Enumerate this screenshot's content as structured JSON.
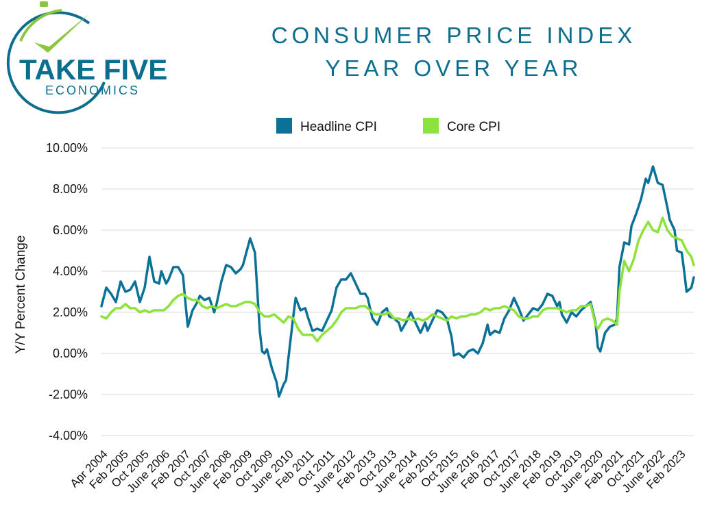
{
  "logo": {
    "brand_top": "TAKE FIVE",
    "brand_bottom": "ECONOMICS",
    "colors": {
      "teal": "#0b6e8e",
      "green": "#8cc63f"
    }
  },
  "title": {
    "line1": "CONSUMER PRICE INDEX",
    "line2": "YEAR OVER YEAR"
  },
  "chart_data": {
    "type": "line",
    "ylabel": "Y/Y Percent Change",
    "ylim": [
      -4,
      10
    ],
    "yticks": [
      -4,
      -2,
      0,
      2,
      4,
      6,
      8,
      10
    ],
    "ytick_labels": [
      "-4.00%",
      "-2.00%",
      "0.00%",
      "2.00%",
      "4.00%",
      "6.00%",
      "8.00%",
      "10.00%"
    ],
    "grid": true,
    "legend_position": "top-center",
    "x_start": "Apr 2004",
    "x_end": "Jun 2023",
    "x_count": 231,
    "xtick_labels": [
      "Apr 2004",
      "Feb 2005",
      "Oct 2005",
      "June 2006",
      "Feb 2007",
      "Oct 2007",
      "June 2008",
      "Feb 2009",
      "Oct 2009",
      "June 2010",
      "Feb 2011",
      "Oct 2011",
      "June 2012",
      "Feb 2013",
      "Oct 2013",
      "June 2014",
      "Feb 2015",
      "Oct 2015",
      "June 2016",
      "Feb 2017",
      "Oct 2017",
      "June 2018",
      "Feb 2019",
      "Oct 2019",
      "June 2020",
      "Feb 2021",
      "Oct 2021",
      "June 2022",
      "Feb 2023"
    ],
    "series": [
      {
        "name": "Headline CPI",
        "color": "#0b7196",
        "anchors": [
          [
            0,
            2.3
          ],
          [
            2,
            3.2
          ],
          [
            4,
            2.9
          ],
          [
            6,
            2.5
          ],
          [
            8,
            3.5
          ],
          [
            10,
            3.0
          ],
          [
            12,
            3.1
          ],
          [
            14,
            3.5
          ],
          [
            16,
            2.5
          ],
          [
            18,
            3.2
          ],
          [
            20,
            4.7
          ],
          [
            22,
            3.5
          ],
          [
            24,
            3.4
          ],
          [
            25,
            4.0
          ],
          [
            27,
            3.4
          ],
          [
            28,
            3.6
          ],
          [
            30,
            4.2
          ],
          [
            32,
            4.2
          ],
          [
            34,
            3.8
          ],
          [
            35,
            2.5
          ],
          [
            36,
            1.3
          ],
          [
            38,
            2.1
          ],
          [
            40,
            2.5
          ],
          [
            41,
            2.8
          ],
          [
            43,
            2.6
          ],
          [
            45,
            2.7
          ],
          [
            47,
            2.0
          ],
          [
            48,
            2.4
          ],
          [
            50,
            3.5
          ],
          [
            52,
            4.3
          ],
          [
            54,
            4.2
          ],
          [
            56,
            3.9
          ],
          [
            58,
            4.1
          ],
          [
            59,
            4.3
          ],
          [
            62,
            5.6
          ],
          [
            64,
            4.9
          ],
          [
            66,
            1.1
          ],
          [
            67,
            0.1
          ],
          [
            68,
            0.0
          ],
          [
            69,
            0.2
          ],
          [
            71,
            -0.7
          ],
          [
            73,
            -1.4
          ],
          [
            74,
            -2.1
          ],
          [
            76,
            -1.5
          ],
          [
            77,
            -1.3
          ],
          [
            78,
            -0.2
          ],
          [
            80,
            1.8
          ],
          [
            81,
            2.7
          ],
          [
            83,
            2.1
          ],
          [
            85,
            2.2
          ],
          [
            86,
            1.8
          ],
          [
            88,
            1.1
          ],
          [
            90,
            1.2
          ],
          [
            92,
            1.1
          ],
          [
            94,
            1.6
          ],
          [
            96,
            2.1
          ],
          [
            98,
            3.2
          ],
          [
            100,
            3.6
          ],
          [
            102,
            3.6
          ],
          [
            104,
            3.9
          ],
          [
            106,
            3.4
          ],
          [
            108,
            2.9
          ],
          [
            110,
            2.9
          ],
          [
            111,
            2.7
          ],
          [
            113,
            1.7
          ],
          [
            115,
            1.4
          ],
          [
            117,
            2.0
          ],
          [
            119,
            2.2
          ],
          [
            120,
            1.8
          ],
          [
            122,
            1.7
          ],
          [
            124,
            1.5
          ],
          [
            125,
            1.1
          ],
          [
            127,
            1.5
          ],
          [
            129,
            2.0
          ],
          [
            131,
            1.5
          ],
          [
            133,
            1.0
          ],
          [
            135,
            1.5
          ],
          [
            136,
            1.1
          ],
          [
            138,
            1.6
          ],
          [
            140,
            2.1
          ],
          [
            142,
            2.0
          ],
          [
            144,
            1.7
          ],
          [
            146,
            0.8
          ],
          [
            147,
            -0.1
          ],
          [
            149,
            0.0
          ],
          [
            151,
            -0.2
          ],
          [
            153,
            0.1
          ],
          [
            155,
            0.2
          ],
          [
            157,
            0.0
          ],
          [
            159,
            0.5
          ],
          [
            161,
            1.4
          ],
          [
            162,
            0.9
          ],
          [
            164,
            1.1
          ],
          [
            166,
            1.0
          ],
          [
            168,
            1.7
          ],
          [
            170,
            2.1
          ],
          [
            172,
            2.7
          ],
          [
            174,
            2.2
          ],
          [
            176,
            1.6
          ],
          [
            178,
            1.9
          ],
          [
            180,
            2.2
          ],
          [
            182,
            2.1
          ],
          [
            184,
            2.4
          ],
          [
            186,
            2.9
          ],
          [
            188,
            2.8
          ],
          [
            190,
            2.3
          ],
          [
            191,
            2.5
          ],
          [
            192,
            1.9
          ],
          [
            194,
            1.5
          ],
          [
            196,
            2.0
          ],
          [
            198,
            1.8
          ],
          [
            200,
            2.1
          ],
          [
            202,
            2.3
          ],
          [
            204,
            2.5
          ],
          [
            206,
            1.5
          ],
          [
            207,
            0.3
          ],
          [
            208,
            0.1
          ],
          [
            210,
            1.0
          ],
          [
            212,
            1.3
          ],
          [
            214,
            1.4
          ],
          [
            215,
            1.7
          ],
          [
            216,
            4.2
          ],
          [
            218,
            5.4
          ],
          [
            220,
            5.3
          ],
          [
            221,
            6.2
          ],
          [
            223,
            6.8
          ],
          [
            225,
            7.5
          ],
          [
            227,
            8.5
          ],
          [
            228,
            8.3
          ],
          [
            230,
            9.1
          ],
          [
            232,
            8.3
          ],
          [
            234,
            8.2
          ],
          [
            236,
            7.1
          ],
          [
            237,
            6.5
          ],
          [
            239,
            6.0
          ],
          [
            240,
            5.0
          ],
          [
            242,
            4.9
          ],
          [
            243,
            4.0
          ],
          [
            244,
            3.0
          ],
          [
            246,
            3.2
          ],
          [
            247,
            3.7
          ]
        ]
      },
      {
        "name": "Core CPI",
        "color": "#8ee23c",
        "anchors": [
          [
            0,
            1.8
          ],
          [
            2,
            1.7
          ],
          [
            4,
            2.0
          ],
          [
            6,
            2.2
          ],
          [
            8,
            2.2
          ],
          [
            10,
            2.4
          ],
          [
            12,
            2.2
          ],
          [
            14,
            2.2
          ],
          [
            16,
            2.0
          ],
          [
            18,
            2.1
          ],
          [
            20,
            2.0
          ],
          [
            22,
            2.1
          ],
          [
            24,
            2.1
          ],
          [
            26,
            2.1
          ],
          [
            28,
            2.3
          ],
          [
            30,
            2.6
          ],
          [
            32,
            2.8
          ],
          [
            34,
            2.9
          ],
          [
            36,
            2.7
          ],
          [
            38,
            2.6
          ],
          [
            40,
            2.6
          ],
          [
            42,
            2.3
          ],
          [
            44,
            2.2
          ],
          [
            46,
            2.3
          ],
          [
            48,
            2.2
          ],
          [
            50,
            2.3
          ],
          [
            52,
            2.4
          ],
          [
            54,
            2.3
          ],
          [
            56,
            2.3
          ],
          [
            58,
            2.4
          ],
          [
            60,
            2.5
          ],
          [
            62,
            2.5
          ],
          [
            64,
            2.4
          ],
          [
            66,
            2.0
          ],
          [
            68,
            1.8
          ],
          [
            70,
            1.8
          ],
          [
            72,
            1.9
          ],
          [
            74,
            1.7
          ],
          [
            76,
            1.5
          ],
          [
            78,
            1.8
          ],
          [
            80,
            1.7
          ],
          [
            82,
            1.2
          ],
          [
            84,
            0.9
          ],
          [
            86,
            0.9
          ],
          [
            88,
            0.9
          ],
          [
            90,
            0.6
          ],
          [
            92,
            0.9
          ],
          [
            94,
            1.1
          ],
          [
            96,
            1.3
          ],
          [
            98,
            1.6
          ],
          [
            100,
            2.0
          ],
          [
            102,
            2.2
          ],
          [
            104,
            2.2
          ],
          [
            106,
            2.2
          ],
          [
            108,
            2.3
          ],
          [
            110,
            2.3
          ],
          [
            112,
            2.1
          ],
          [
            114,
            1.9
          ],
          [
            116,
            1.9
          ],
          [
            118,
            1.9
          ],
          [
            120,
            2.0
          ],
          [
            122,
            1.7
          ],
          [
            124,
            1.7
          ],
          [
            126,
            1.6
          ],
          [
            128,
            1.7
          ],
          [
            130,
            1.6
          ],
          [
            132,
            1.7
          ],
          [
            134,
            1.6
          ],
          [
            136,
            1.7
          ],
          [
            138,
            1.9
          ],
          [
            140,
            1.8
          ],
          [
            142,
            1.7
          ],
          [
            144,
            1.6
          ],
          [
            146,
            1.8
          ],
          [
            148,
            1.7
          ],
          [
            150,
            1.8
          ],
          [
            152,
            1.8
          ],
          [
            154,
            1.9
          ],
          [
            156,
            1.9
          ],
          [
            158,
            2.0
          ],
          [
            160,
            2.2
          ],
          [
            162,
            2.1
          ],
          [
            164,
            2.2
          ],
          [
            166,
            2.2
          ],
          [
            168,
            2.3
          ],
          [
            170,
            2.2
          ],
          [
            172,
            2.1
          ],
          [
            174,
            1.8
          ],
          [
            176,
            1.7
          ],
          [
            178,
            1.7
          ],
          [
            180,
            1.8
          ],
          [
            182,
            1.8
          ],
          [
            184,
            2.1
          ],
          [
            186,
            2.2
          ],
          [
            188,
            2.2
          ],
          [
            190,
            2.2
          ],
          [
            192,
            2.1
          ],
          [
            194,
            2.0
          ],
          [
            196,
            2.1
          ],
          [
            198,
            2.1
          ],
          [
            200,
            2.3
          ],
          [
            202,
            2.3
          ],
          [
            204,
            2.4
          ],
          [
            206,
            1.4
          ],
          [
            207,
            1.2
          ],
          [
            209,
            1.6
          ],
          [
            211,
            1.7
          ],
          [
            213,
            1.6
          ],
          [
            215,
            1.4
          ],
          [
            216,
            3.0
          ],
          [
            218,
            4.5
          ],
          [
            220,
            4.0
          ],
          [
            222,
            4.6
          ],
          [
            224,
            5.5
          ],
          [
            226,
            6.0
          ],
          [
            228,
            6.4
          ],
          [
            230,
            6.0
          ],
          [
            232,
            5.9
          ],
          [
            234,
            6.6
          ],
          [
            236,
            6.0
          ],
          [
            238,
            5.7
          ],
          [
            240,
            5.6
          ],
          [
            242,
            5.5
          ],
          [
            244,
            5.0
          ],
          [
            246,
            4.7
          ],
          [
            247,
            4.3
          ]
        ]
      }
    ]
  }
}
